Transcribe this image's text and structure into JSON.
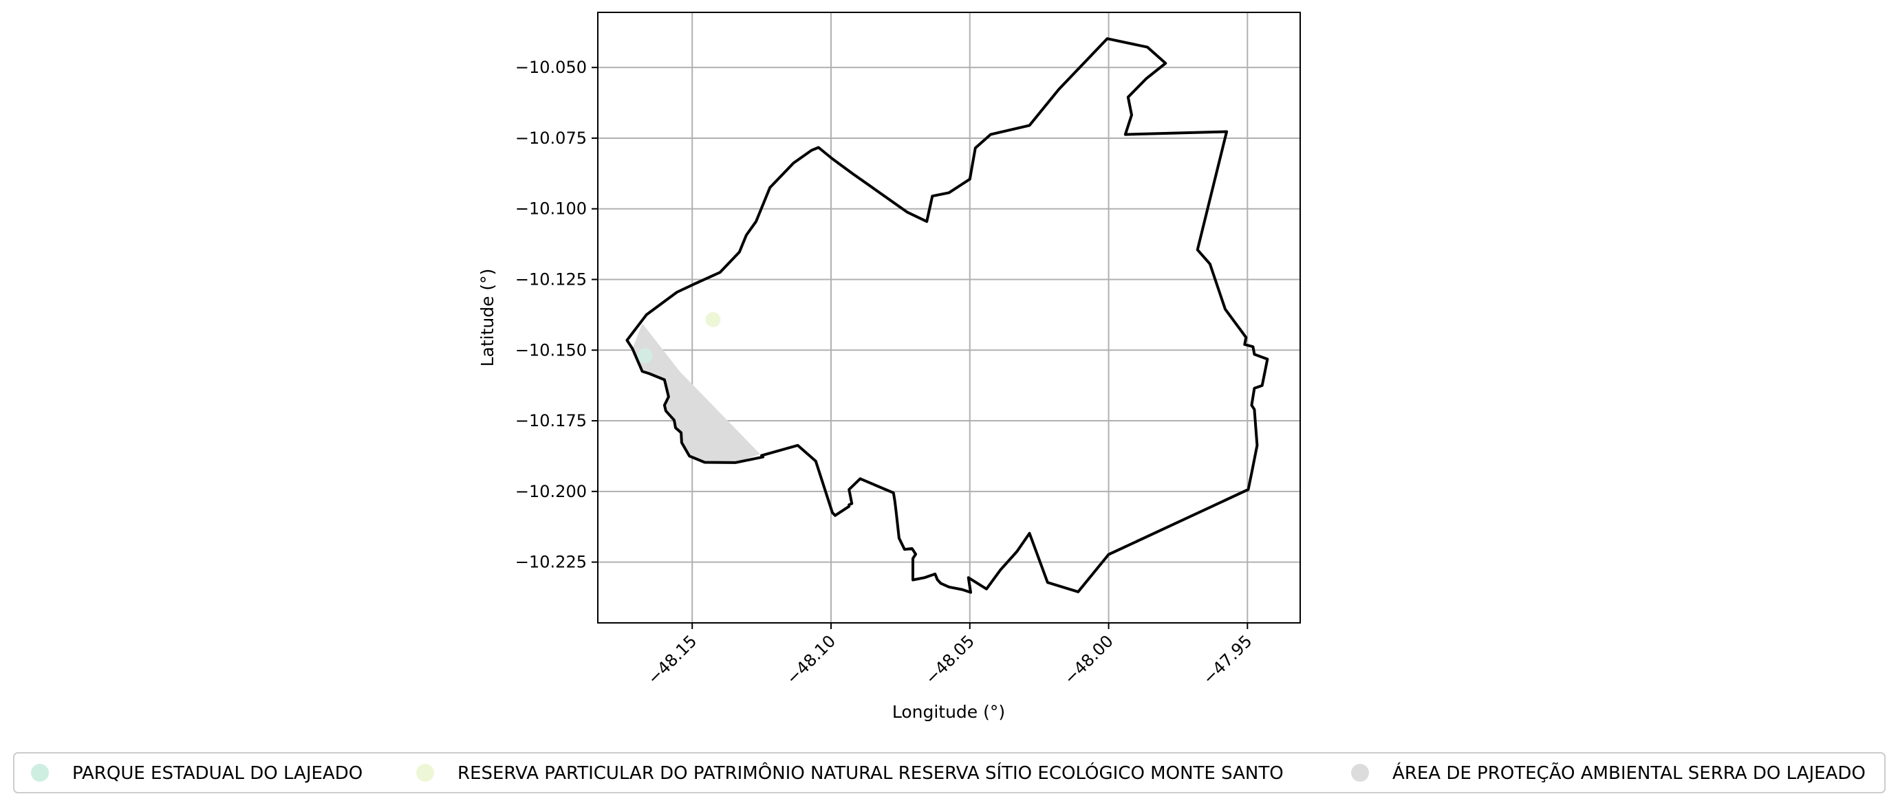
{
  "chart_data": {
    "type": "map",
    "xlabel": "Longitude (°)",
    "ylabel": "Latitude (°)",
    "xlim": [
      -48.184,
      -47.931
    ],
    "ylim": [
      -10.2465,
      -10.0305
    ],
    "xticks": [
      -48.15,
      -48.1,
      -48.05,
      -48.0,
      -47.95
    ],
    "xtick_labels": [
      "−48.15",
      "−48.10",
      "−48.05",
      "−48.00",
      "−47.95"
    ],
    "yticks": [
      -10.05,
      -10.075,
      -10.1,
      -10.125,
      -10.15,
      -10.175,
      -10.2,
      -10.225
    ],
    "ytick_labels": [
      "−10.050",
      "−10.075",
      "−10.100",
      "−10.125",
      "−10.150",
      "−10.175",
      "−10.200",
      "−10.225"
    ],
    "grid": true,
    "legend_position": "bottom",
    "boundary": {
      "stroke": "#000000",
      "coords": [
        [
          -48.0005,
          -10.0398
        ],
        [
          -47.986,
          -10.0428
        ],
        [
          -47.9795,
          -10.0485
        ],
        [
          -47.9865,
          -10.054
        ],
        [
          -47.993,
          -10.0605
        ],
        [
          -47.9917,
          -10.0668
        ],
        [
          -47.994,
          -10.0737
        ],
        [
          -47.9575,
          -10.0727
        ],
        [
          -47.968,
          -10.1145
        ],
        [
          -47.9635,
          -10.1195
        ],
        [
          -47.958,
          -10.1355
        ],
        [
          -47.9505,
          -10.1455
        ],
        [
          -47.951,
          -10.148
        ],
        [
          -47.948,
          -10.1488
        ],
        [
          -47.9475,
          -10.1515
        ],
        [
          -47.9428,
          -10.1532
        ],
        [
          -47.9447,
          -10.1625
        ],
        [
          -47.9475,
          -10.1635
        ],
        [
          -47.9485,
          -10.1695
        ],
        [
          -47.9475,
          -10.171
        ],
        [
          -47.9465,
          -10.1837
        ],
        [
          -47.9485,
          -10.1935
        ],
        [
          -47.9497,
          -10.1993
        ],
        [
          -48.0,
          -10.2223
        ],
        [
          -48.011,
          -10.2355
        ],
        [
          -48.022,
          -10.2322
        ],
        [
          -48.0285,
          -10.2148
        ],
        [
          -48.033,
          -10.2212
        ],
        [
          -48.039,
          -10.2278
        ],
        [
          -48.044,
          -10.2345
        ],
        [
          -48.0505,
          -10.2305
        ],
        [
          -48.0497,
          -10.2357
        ],
        [
          -48.0528,
          -10.2347
        ],
        [
          -48.0575,
          -10.2338
        ],
        [
          -48.0605,
          -10.2325
        ],
        [
          -48.0617,
          -10.2312
        ],
        [
          -48.0625,
          -10.2292
        ],
        [
          -48.0663,
          -10.2305
        ],
        [
          -48.0705,
          -10.2313
        ],
        [
          -48.0705,
          -10.2237
        ],
        [
          -48.0695,
          -10.2222
        ],
        [
          -48.0708,
          -10.2202
        ],
        [
          -48.0735,
          -10.2205
        ],
        [
          -48.0755,
          -10.2165
        ],
        [
          -48.0765,
          -10.2075
        ],
        [
          -48.077,
          -10.2035
        ],
        [
          -48.0775,
          -10.2005
        ],
        [
          -48.0895,
          -10.1955
        ],
        [
          -48.0935,
          -10.1993
        ],
        [
          -48.0925,
          -10.2043
        ],
        [
          -48.0935,
          -10.2047
        ],
        [
          -48.0935,
          -10.2053
        ],
        [
          -48.0985,
          -10.2085
        ],
        [
          -48.0995,
          -10.2075
        ],
        [
          -48.1055,
          -10.1893
        ],
        [
          -48.112,
          -10.1837
        ],
        [
          -48.125,
          -10.1873
        ],
        [
          -48.1245,
          -10.1878
        ],
        [
          -48.1345,
          -10.1898
        ],
        [
          -48.1455,
          -10.1897
        ],
        [
          -48.151,
          -10.1875
        ],
        [
          -48.1538,
          -10.1827
        ],
        [
          -48.154,
          -10.1792
        ],
        [
          -48.156,
          -10.1775
        ],
        [
          -48.1565,
          -10.1748
        ],
        [
          -48.1595,
          -10.1715
        ],
        [
          -48.16,
          -10.1695
        ],
        [
          -48.1585,
          -10.1665
        ],
        [
          -48.16,
          -10.1605
        ],
        [
          -48.1655,
          -10.1583
        ],
        [
          -48.168,
          -10.1575
        ],
        [
          -48.1715,
          -10.1495
        ],
        [
          -48.1735,
          -10.1465
        ],
        [
          -48.1665,
          -10.1375
        ],
        [
          -48.1555,
          -10.1295
        ],
        [
          -48.149,
          -10.1265
        ],
        [
          -48.14,
          -10.1225
        ],
        [
          -48.133,
          -10.1153
        ],
        [
          -48.1305,
          -10.1093
        ],
        [
          -48.127,
          -10.1045
        ],
        [
          -48.122,
          -10.0925
        ],
        [
          -48.1135,
          -10.0838
        ],
        [
          -48.107,
          -10.0793
        ],
        [
          -48.1045,
          -10.0783
        ],
        [
          -48.0995,
          -10.0823
        ],
        [
          -48.092,
          -10.0877
        ],
        [
          -48.0725,
          -10.1012
        ],
        [
          -48.0655,
          -10.1045
        ],
        [
          -48.0635,
          -10.0955
        ],
        [
          -48.0575,
          -10.0943
        ],
        [
          -48.05,
          -10.0895
        ],
        [
          -48.048,
          -10.0785
        ],
        [
          -48.0425,
          -10.0737
        ],
        [
          -48.0285,
          -10.0705
        ],
        [
          -48.018,
          -10.0578
        ],
        [
          -48.0005,
          -10.0398
        ]
      ]
    },
    "areas": [
      {
        "name": "ÁREA DE PROTEÇÃO AMBIENTAL SERRA DO LAJEADO",
        "color": "#dcdcdc",
        "coords": [
          [
            -48.168,
            -10.1405
          ],
          [
            -48.1545,
            -10.1575
          ],
          [
            -48.1255,
            -10.1868
          ],
          [
            -48.1345,
            -10.1898
          ],
          [
            -48.1455,
            -10.1897
          ],
          [
            -48.151,
            -10.1875
          ],
          [
            -48.1538,
            -10.1827
          ],
          [
            -48.154,
            -10.1792
          ],
          [
            -48.156,
            -10.1775
          ],
          [
            -48.1565,
            -10.1748
          ],
          [
            -48.1595,
            -10.1715
          ],
          [
            -48.16,
            -10.1695
          ],
          [
            -48.1585,
            -10.1665
          ],
          [
            -48.16,
            -10.1605
          ],
          [
            -48.1655,
            -10.1583
          ],
          [
            -48.168,
            -10.1575
          ],
          [
            -48.1715,
            -10.1495
          ],
          [
            -48.168,
            -10.1405
          ]
        ]
      }
    ],
    "points": [
      {
        "name": "PARQUE ESTADUAL DO LAJEADO",
        "color": "#d2ece3",
        "lon": -48.167,
        "lat": -10.152
      },
      {
        "name": "RESERVA PARTICULAR DO PATRIMÔNIO NATURAL RESERVA SÍTIO ECOLÓGICO MONTE SANTO",
        "color": "#eef6d8",
        "lon": -48.1425,
        "lat": -10.1392
      }
    ],
    "legend": [
      {
        "label": "PARQUE ESTADUAL DO LAJEADO",
        "color": "#cfeee2"
      },
      {
        "label": "RESERVA PARTICULAR DO PATRIMÔNIO NATURAL RESERVA SÍTIO ECOLÓGICO MONTE SANTO",
        "color": "#edf7d7"
      },
      {
        "label": "ÁREA DE PROTEÇÃO AMBIENTAL SERRA DO LAJEADO",
        "color": "#dcdcdc"
      }
    ]
  }
}
